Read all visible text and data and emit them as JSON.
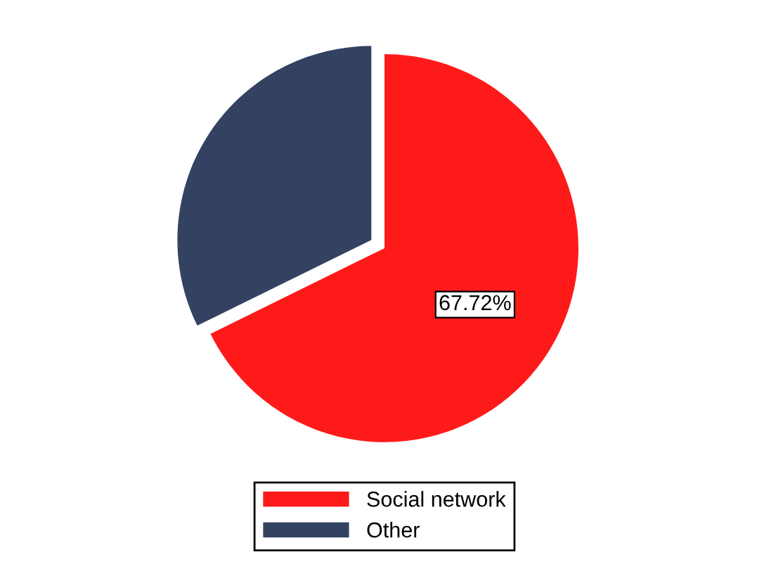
{
  "chart_data": {
    "type": "pie",
    "categories": [
      "Social network",
      "Other"
    ],
    "values": [
      67.72,
      32.28
    ],
    "colors": [
      "#ff1a1a",
      "#344262"
    ],
    "value_labels": [
      "67.72%",
      null
    ],
    "legend": "bottom"
  }
}
